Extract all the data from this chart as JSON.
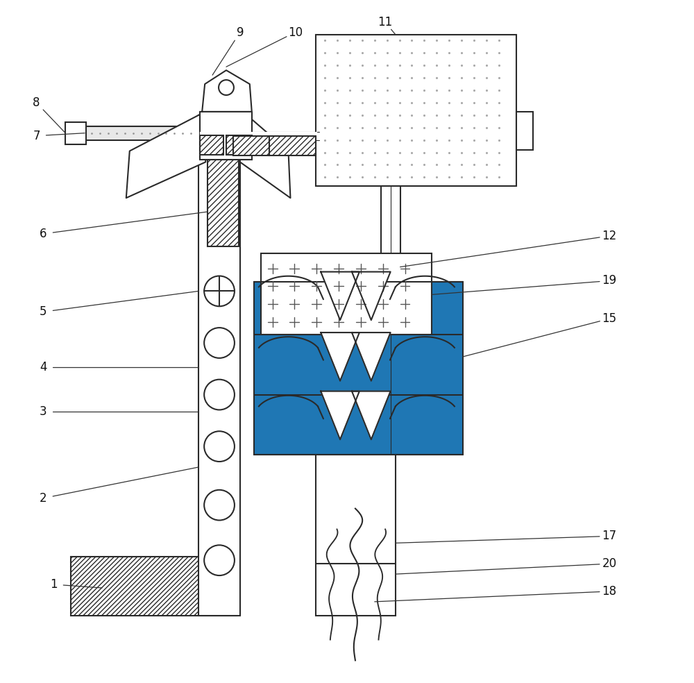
{
  "bg_color": "#ffffff",
  "line_color": "#2a2a2a",
  "figure_width": 10.0,
  "figure_height": 9.84
}
